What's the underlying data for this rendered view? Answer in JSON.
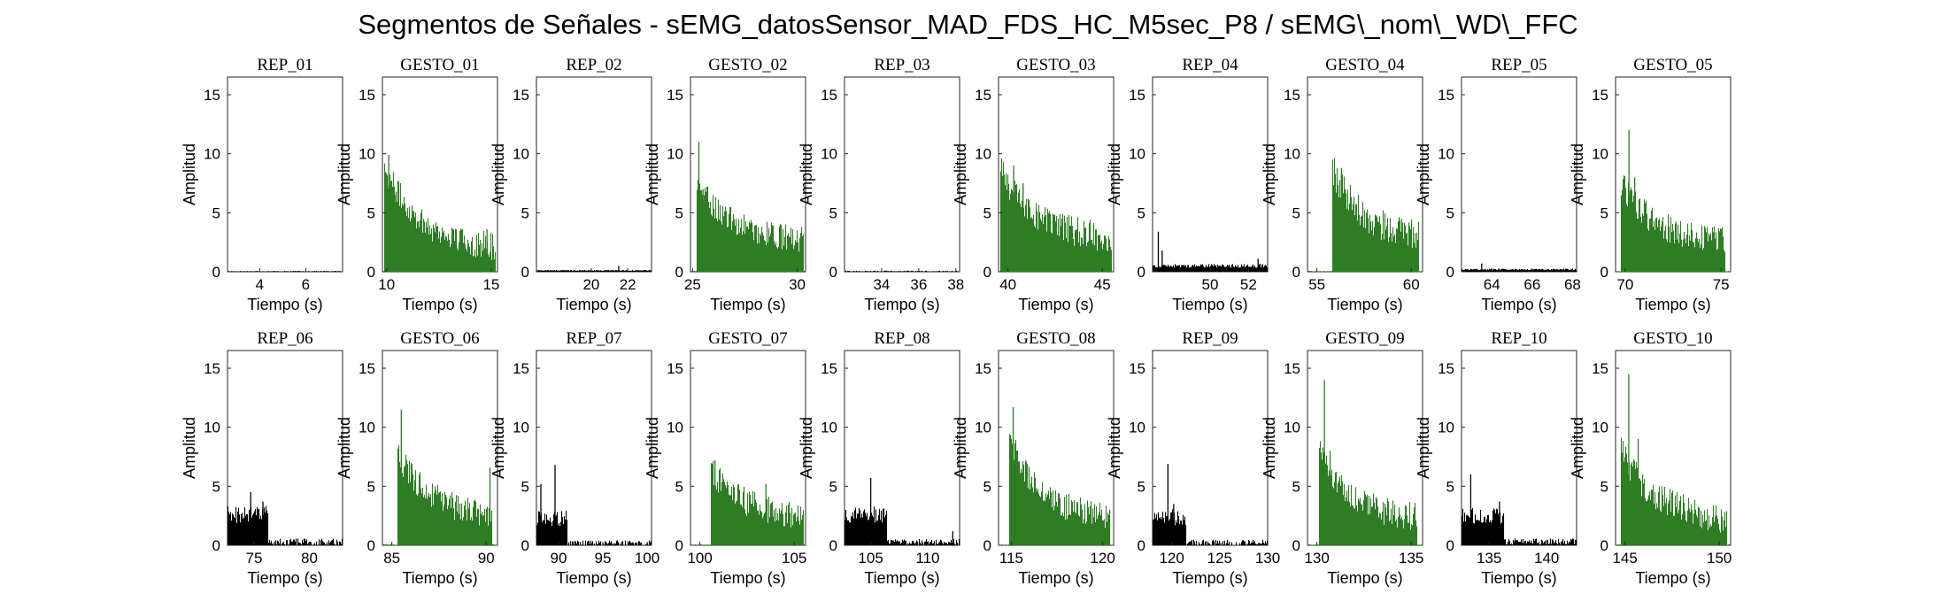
{
  "figure": {
    "title": "Segmentos de Señales - sEMG_datosSensor_MAD_FDS_HC_M5sec_P8 / sEMG\\_nom\\_WD\\_FFC"
  },
  "colors": {
    "rep": "#000000",
    "gesto": "#2e7d24",
    "axis": "#262626"
  },
  "chart_data": [
    {
      "type": "bar",
      "title": "REP_01",
      "kind": "rep",
      "xlabel": "Tiempo (s)",
      "ylabel": "Amplitud",
      "xlim": [
        2.6,
        7.6
      ],
      "ylim": [
        0,
        16.5
      ],
      "xticks": [
        4,
        6
      ],
      "yticks": [
        0,
        5,
        10,
        15
      ],
      "profile": {
        "base": 0.08,
        "jitter": 0.04,
        "spikes": []
      }
    },
    {
      "type": "bar",
      "title": "GESTO_01",
      "kind": "gesto",
      "xlabel": "Tiempo (s)",
      "ylabel": "Amplitud",
      "xlim": [
        9.8,
        15.3
      ],
      "ylim": [
        0,
        16.5
      ],
      "xticks": [
        10,
        15
      ],
      "yticks": [
        0,
        5,
        10,
        15
      ],
      "profile": {
        "active": [
          9.9,
          15.2
        ],
        "decay": [
          7.0,
          1.8
        ],
        "jitter": 1.2,
        "spikes": [
          [
            10.1,
            9.9
          ],
          [
            10.4,
            6.5
          ],
          [
            14.8,
            3.6
          ]
        ]
      }
    },
    {
      "type": "bar",
      "title": "REP_02",
      "kind": "rep",
      "xlabel": "Tiempo (s)",
      "ylabel": "Amplitud",
      "xlim": [
        17.0,
        23.3
      ],
      "ylim": [
        0,
        16.5
      ],
      "xticks": [
        20,
        22
      ],
      "yticks": [
        0,
        5,
        10,
        15
      ],
      "profile": {
        "base": 0.12,
        "jitter": 0.1,
        "spikes": [
          [
            21.5,
            0.5
          ]
        ]
      }
    },
    {
      "type": "bar",
      "title": "GESTO_02",
      "kind": "gesto",
      "xlabel": "Tiempo (s)",
      "ylabel": "Amplitud",
      "xlim": [
        24.9,
        30.4
      ],
      "ylim": [
        0,
        16.5
      ],
      "xticks": [
        25,
        30
      ],
      "yticks": [
        0,
        5,
        10,
        15
      ],
      "profile": {
        "active": [
          25.2,
          30.3
        ],
        "decay": [
          5.0,
          2.5
        ],
        "jitter": 1.1,
        "spikes": [
          [
            25.3,
            11.0
          ],
          [
            25.5,
            7.0
          ]
        ]
      }
    },
    {
      "type": "bar",
      "title": "REP_03",
      "kind": "rep",
      "xlabel": "Tiempo (s)",
      "ylabel": "Amplitud",
      "xlim": [
        32.0,
        38.2
      ],
      "ylim": [
        0,
        16.5
      ],
      "xticks": [
        34,
        36,
        38
      ],
      "yticks": [
        0,
        5,
        10,
        15
      ],
      "profile": {
        "base": 0.1,
        "jitter": 0.08,
        "spikes": []
      }
    },
    {
      "type": "bar",
      "title": "GESTO_03",
      "kind": "gesto",
      "xlabel": "Tiempo (s)",
      "ylabel": "Amplitud",
      "xlim": [
        39.5,
        45.6
      ],
      "ylim": [
        0,
        16.5
      ],
      "xticks": [
        40,
        45
      ],
      "yticks": [
        0,
        5,
        10,
        15
      ],
      "profile": {
        "active": [
          39.6,
          45.5
        ],
        "decay": [
          6.0,
          2.6
        ],
        "jitter": 1.3,
        "spikes": [
          [
            40.3,
            9.0
          ],
          [
            40.8,
            7.5
          ]
        ]
      }
    },
    {
      "type": "bar",
      "title": "REP_04",
      "kind": "rep",
      "xlabel": "Tiempo (s)",
      "ylabel": "Amplitud",
      "xlim": [
        47.0,
        53.0
      ],
      "ylim": [
        0,
        16.5
      ],
      "xticks": [
        50,
        52
      ],
      "yticks": [
        0,
        5,
        10,
        15
      ],
      "profile": {
        "base": 0.5,
        "jitter": 0.4,
        "spikes": [
          [
            47.3,
            3.4
          ],
          [
            47.5,
            1.8
          ],
          [
            52.5,
            1.1
          ]
        ]
      }
    },
    {
      "type": "bar",
      "title": "GESTO_04",
      "kind": "gesto",
      "xlabel": "Tiempo (s)",
      "ylabel": "Amplitud",
      "xlim": [
        54.5,
        60.6
      ],
      "ylim": [
        0,
        16.5
      ],
      "xticks": [
        55,
        60
      ],
      "yticks": [
        0,
        5,
        10,
        15
      ],
      "profile": {
        "active": [
          55.8,
          60.4
        ],
        "decay": [
          6.0,
          2.8
        ],
        "jitter": 1.4,
        "spikes": [
          [
            56.3,
            8.8
          ],
          [
            56.5,
            7.0
          ]
        ]
      }
    },
    {
      "type": "bar",
      "title": "REP_05",
      "kind": "rep",
      "xlabel": "Tiempo (s)",
      "ylabel": "Amplitud",
      "xlim": [
        62.5,
        68.2
      ],
      "ylim": [
        0,
        16.5
      ],
      "xticks": [
        64,
        66,
        68
      ],
      "yticks": [
        0,
        5,
        10,
        15
      ],
      "profile": {
        "base": 0.2,
        "jitter": 0.15,
        "spikes": [
          [
            63.5,
            0.7
          ]
        ]
      }
    },
    {
      "type": "bar",
      "title": "GESTO_05",
      "kind": "gesto",
      "xlabel": "Tiempo (s)",
      "ylabel": "Amplitud",
      "xlim": [
        69.5,
        75.5
      ],
      "ylim": [
        0,
        16.5
      ],
      "xticks": [
        70,
        75
      ],
      "yticks": [
        0,
        5,
        10,
        15
      ],
      "profile": {
        "active": [
          69.8,
          75.2
        ],
        "decay": [
          5.0,
          2.4
        ],
        "jitter": 1.2,
        "spikes": [
          [
            70.2,
            12.0
          ],
          [
            70.5,
            8.0
          ]
        ]
      }
    },
    {
      "type": "bar",
      "title": "REP_06",
      "kind": "rep",
      "xlabel": "Tiempo (s)",
      "ylabel": "Amplitud",
      "xlim": [
        72.6,
        83.0
      ],
      "ylim": [
        0,
        16.5
      ],
      "xticks": [
        75,
        80
      ],
      "yticks": [
        0,
        5,
        10,
        15
      ],
      "profile": {
        "burst": [
          72.6,
          76.3,
          2.6
        ],
        "base": 0.25,
        "jitter": 0.8,
        "spikes": [
          [
            74.7,
            4.5
          ],
          [
            75.8,
            3.7
          ]
        ]
      }
    },
    {
      "type": "bar",
      "title": "GESTO_06",
      "kind": "gesto",
      "xlabel": "Tiempo (s)",
      "ylabel": "Amplitud",
      "xlim": [
        84.5,
        90.6
      ],
      "ylim": [
        0,
        16.5
      ],
      "xticks": [
        85,
        90
      ],
      "yticks": [
        0,
        5,
        10,
        15
      ],
      "profile": {
        "active": [
          85.3,
          90.3
        ],
        "decay": [
          5.5,
          2.4
        ],
        "jitter": 1.2,
        "spikes": [
          [
            85.5,
            11.5
          ],
          [
            90.2,
            6.6
          ]
        ]
      }
    },
    {
      "type": "bar",
      "title": "REP_07",
      "kind": "rep",
      "xlabel": "Tiempo (s)",
      "ylabel": "Amplitud",
      "xlim": [
        87.5,
        100.5
      ],
      "ylim": [
        0,
        16.5
      ],
      "xticks": [
        90,
        95,
        100
      ],
      "yticks": [
        0,
        5,
        10,
        15
      ],
      "profile": {
        "burst": [
          87.5,
          91.0,
          2.3
        ],
        "base": 0.15,
        "jitter": 0.7,
        "spikes": [
          [
            88.0,
            5.2
          ],
          [
            89.6,
            6.8
          ]
        ]
      }
    },
    {
      "type": "bar",
      "title": "GESTO_07",
      "kind": "gesto",
      "xlabel": "Tiempo (s)",
      "ylabel": "Amplitud",
      "xlim": [
        99.5,
        105.6
      ],
      "ylim": [
        0,
        16.5
      ],
      "xticks": [
        100,
        105
      ],
      "yticks": [
        0,
        5,
        10,
        15
      ],
      "profile": {
        "active": [
          100.6,
          105.5
        ],
        "decay": [
          4.0,
          2.4
        ],
        "jitter": 1.2,
        "spikes": [
          [
            100.8,
            7.2
          ],
          [
            103.5,
            5.2
          ]
        ]
      }
    },
    {
      "type": "bar",
      "title": "REP_08",
      "kind": "rep",
      "xlabel": "Tiempo (s)",
      "ylabel": "Amplitud",
      "xlim": [
        102.7,
        112.8
      ],
      "ylim": [
        0,
        16.5
      ],
      "xticks": [
        105,
        110
      ],
      "yticks": [
        0,
        5,
        10,
        15
      ],
      "profile": {
        "burst": [
          102.7,
          106.4,
          2.6
        ],
        "base": 0.3,
        "jitter": 0.7,
        "spikes": [
          [
            105.0,
            5.7
          ],
          [
            112.2,
            1.2
          ]
        ]
      }
    },
    {
      "type": "bar",
      "title": "GESTO_08",
      "kind": "gesto",
      "xlabel": "Tiempo (s)",
      "ylabel": "Amplitud",
      "xlim": [
        114.3,
        120.6
      ],
      "ylim": [
        0,
        16.5
      ],
      "xticks": [
        115,
        120
      ],
      "yticks": [
        0,
        5,
        10,
        15
      ],
      "profile": {
        "active": [
          114.9,
          120.4
        ],
        "decay": [
          7.0,
          2.0
        ],
        "jitter": 1.2,
        "spikes": [
          [
            115.1,
            11.7
          ],
          [
            115.3,
            8.0
          ]
        ]
      }
    },
    {
      "type": "bar",
      "title": "REP_09",
      "kind": "rep",
      "xlabel": "Tiempo (s)",
      "ylabel": "Amplitud",
      "xlim": [
        118.0,
        130.0
      ],
      "ylim": [
        0,
        16.5
      ],
      "xticks": [
        120,
        125,
        130
      ],
      "yticks": [
        0,
        5,
        10,
        15
      ],
      "profile": {
        "burst": [
          118.0,
          121.5,
          2.4
        ],
        "base": 0.2,
        "jitter": 0.7,
        "spikes": [
          [
            119.6,
            6.9
          ],
          [
            120.2,
            3.5
          ]
        ]
      }
    },
    {
      "type": "bar",
      "title": "GESTO_09",
      "kind": "gesto",
      "xlabel": "Tiempo (s)",
      "ylabel": "Amplitud",
      "xlim": [
        129.5,
        135.6
      ],
      "ylim": [
        0,
        16.5
      ],
      "xticks": [
        130,
        135
      ],
      "yticks": [
        0,
        5,
        10,
        15
      ],
      "profile": {
        "active": [
          130.1,
          135.3
        ],
        "decay": [
          6.0,
          2.1
        ],
        "jitter": 1.2,
        "spikes": [
          [
            130.4,
            14.0
          ],
          [
            130.7,
            8.0
          ]
        ]
      }
    },
    {
      "type": "bar",
      "title": "REP_10",
      "kind": "rep",
      "xlabel": "Tiempo (s)",
      "ylabel": "Amplitud",
      "xlim": [
        132.6,
        142.6
      ],
      "ylim": [
        0,
        16.5
      ],
      "xticks": [
        135,
        140
      ],
      "yticks": [
        0,
        5,
        10,
        15
      ],
      "profile": {
        "burst": [
          132.6,
          136.3,
          2.5
        ],
        "base": 0.3,
        "jitter": 0.7,
        "spikes": [
          [
            133.4,
            6.0
          ],
          [
            135.9,
            3.7
          ]
        ]
      }
    },
    {
      "type": "bar",
      "title": "GESTO_10",
      "kind": "gesto",
      "xlabel": "Tiempo (s)",
      "ylabel": "Amplitud",
      "xlim": [
        144.5,
        150.6
      ],
      "ylim": [
        0,
        16.5
      ],
      "xticks": [
        145,
        150
      ],
      "yticks": [
        0,
        5,
        10,
        15
      ],
      "profile": {
        "active": [
          144.8,
          150.4
        ],
        "decay": [
          6.0,
          2.0
        ],
        "jitter": 1.3,
        "spikes": [
          [
            145.2,
            14.5
          ],
          [
            145.7,
            9.0
          ]
        ]
      }
    }
  ]
}
